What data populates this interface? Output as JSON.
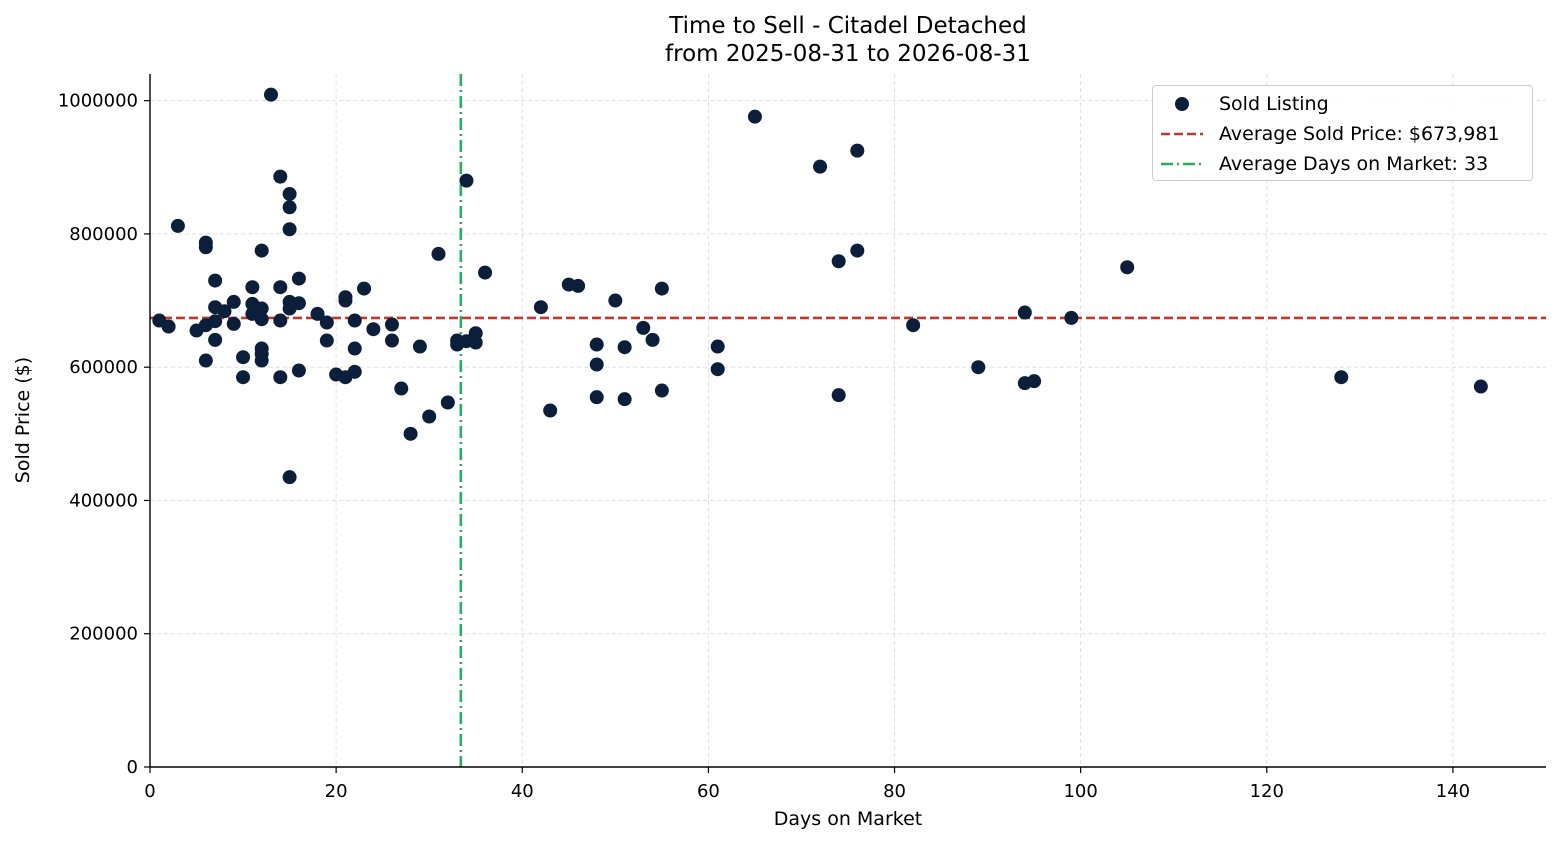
{
  "chart_data": {
    "type": "scatter",
    "title": "Time to Sell - Citadel Detached",
    "subtitle": "from 2025-08-31 to 2026-08-31",
    "xlabel": "Days on Market",
    "ylabel": "Sold Price ($)",
    "xlim": [
      0,
      150
    ],
    "ylim": [
      0,
      1040000
    ],
    "xticks": [
      "0",
      "20",
      "40",
      "60",
      "80",
      "100",
      "120",
      "140"
    ],
    "yticks": [
      "0",
      "200000",
      "400000",
      "600000",
      "800000",
      "1000000"
    ],
    "grid": true,
    "legend_position": "top-right",
    "colors": {
      "points": "#0b1f3a",
      "avg_price": "#c0392b",
      "avg_days": "#27ae60"
    },
    "series": [
      {
        "name": "Sold Listing",
        "points": [
          [
            1,
            670000
          ],
          [
            2,
            661000
          ],
          [
            3,
            812000
          ],
          [
            5,
            655000
          ],
          [
            6,
            663000
          ],
          [
            6,
            610000
          ],
          [
            6,
            787000
          ],
          [
            6,
            780000
          ],
          [
            7,
            730000
          ],
          [
            7,
            690000
          ],
          [
            7,
            669000
          ],
          [
            7,
            641000
          ],
          [
            8,
            684000
          ],
          [
            9,
            698000
          ],
          [
            9,
            665000
          ],
          [
            10,
            615000
          ],
          [
            10,
            585000
          ],
          [
            11,
            720000
          ],
          [
            11,
            695000
          ],
          [
            11,
            680000
          ],
          [
            12,
            775000
          ],
          [
            12,
            688000
          ],
          [
            12,
            672000
          ],
          [
            12,
            628000
          ],
          [
            12,
            620000
          ],
          [
            12,
            610000
          ],
          [
            13,
            1009000
          ],
          [
            14,
            886000
          ],
          [
            14,
            720000
          ],
          [
            14,
            670000
          ],
          [
            14,
            585000
          ],
          [
            15,
            860000
          ],
          [
            15,
            840000
          ],
          [
            15,
            807000
          ],
          [
            15,
            698000
          ],
          [
            15,
            688000
          ],
          [
            15,
            435000
          ],
          [
            16,
            733000
          ],
          [
            16,
            696000
          ],
          [
            16,
            595000
          ],
          [
            18,
            680000
          ],
          [
            19,
            667000
          ],
          [
            19,
            640000
          ],
          [
            20,
            589000
          ],
          [
            21,
            705000
          ],
          [
            21,
            700000
          ],
          [
            21,
            585000
          ],
          [
            22,
            670000
          ],
          [
            22,
            628000
          ],
          [
            22,
            593000
          ],
          [
            23,
            718000
          ],
          [
            24,
            657000
          ],
          [
            26,
            664000
          ],
          [
            26,
            640000
          ],
          [
            27,
            568000
          ],
          [
            28,
            500000
          ],
          [
            29,
            631000
          ],
          [
            30,
            526000
          ],
          [
            31,
            770000
          ],
          [
            32,
            547000
          ],
          [
            33,
            640000
          ],
          [
            33,
            634000
          ],
          [
            34,
            880000
          ],
          [
            34,
            639000
          ],
          [
            35,
            651000
          ],
          [
            35,
            637000
          ],
          [
            36,
            742000
          ],
          [
            42,
            690000
          ],
          [
            43,
            535000
          ],
          [
            45,
            724000
          ],
          [
            46,
            722000
          ],
          [
            48,
            634000
          ],
          [
            48,
            604000
          ],
          [
            48,
            555000
          ],
          [
            50,
            700000
          ],
          [
            51,
            630000
          ],
          [
            51,
            552000
          ],
          [
            53,
            659000
          ],
          [
            54,
            641000
          ],
          [
            55,
            718000
          ],
          [
            55,
            565000
          ],
          [
            61,
            631000
          ],
          [
            61,
            597000
          ],
          [
            65,
            976000
          ],
          [
            72,
            901000
          ],
          [
            74,
            759000
          ],
          [
            74,
            558000
          ],
          [
            76,
            925000
          ],
          [
            76,
            775000
          ],
          [
            82,
            663000
          ],
          [
            89,
            600000
          ],
          [
            94,
            682000
          ],
          [
            94,
            576000
          ],
          [
            95,
            579000
          ],
          [
            99,
            674000
          ],
          [
            105,
            750000
          ],
          [
            128,
            585000
          ],
          [
            143,
            571000
          ]
        ]
      }
    ],
    "reference_lines": [
      {
        "name": "Average Sold Price: $673,981",
        "orientation": "horizontal",
        "value": 673981,
        "style": "dashed"
      },
      {
        "name": "Average Days on Market: 33",
        "orientation": "vertical",
        "value": 33.4,
        "style": "dash-dot"
      }
    ]
  }
}
